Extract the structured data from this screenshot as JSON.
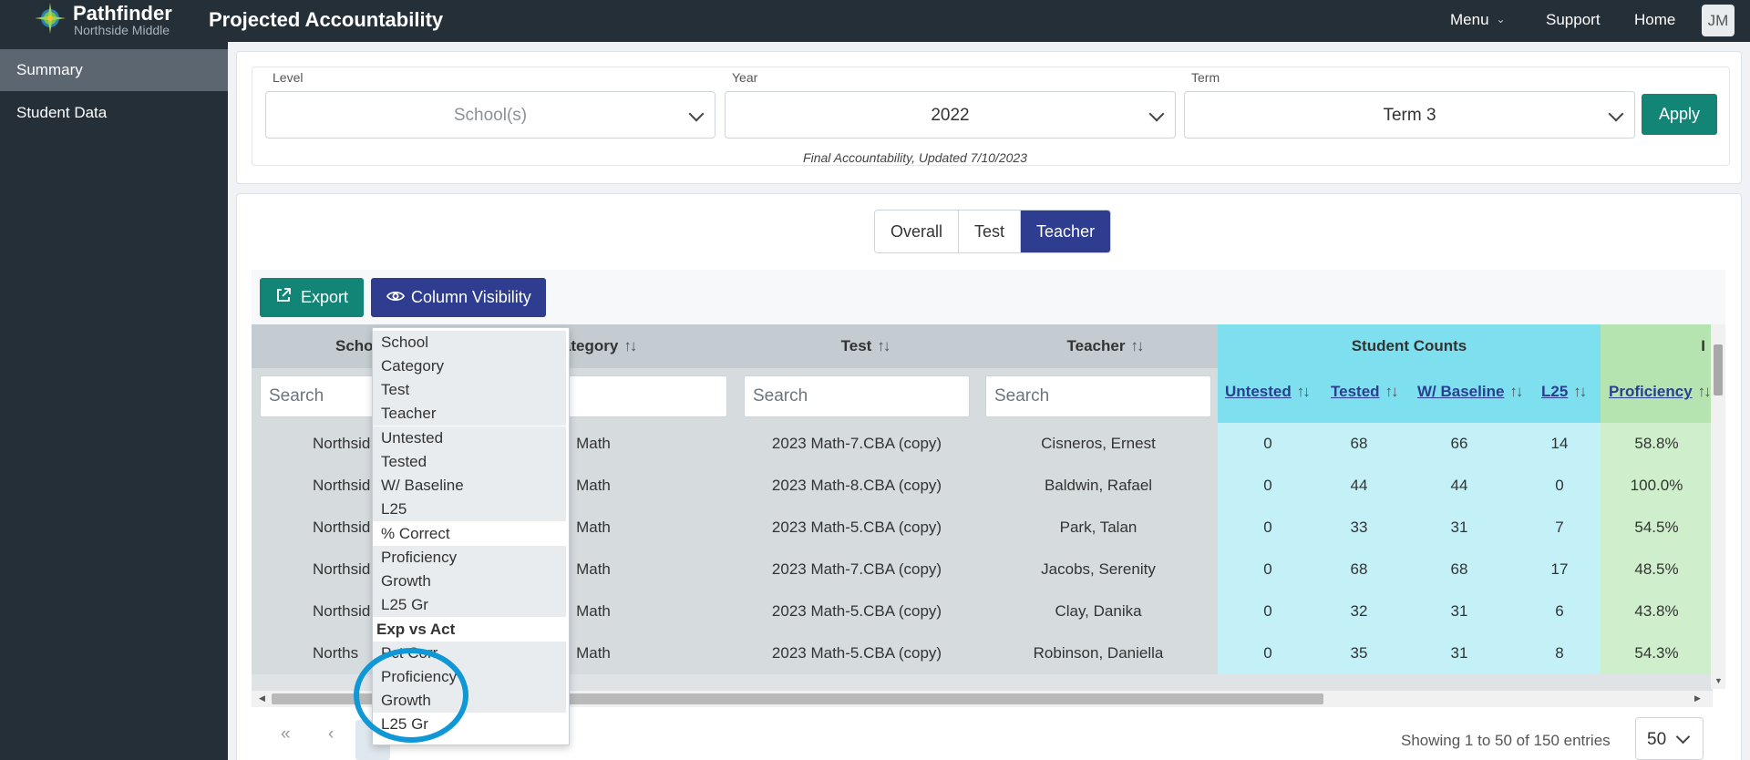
{
  "header": {
    "brand_name": "Pathfinder",
    "brand_sub": "Northside Middle",
    "app_title": "Projected Accountability",
    "nav": {
      "menu": "Menu",
      "support": "Support",
      "home": "Home"
    },
    "avatar_initials": "JM"
  },
  "sidebar": {
    "items": [
      {
        "label": "Summary",
        "active": true
      },
      {
        "label": "Student Data",
        "active": false
      }
    ]
  },
  "filters": {
    "level": {
      "label": "Level",
      "value": "School(s)"
    },
    "year": {
      "label": "Year",
      "value": "2022"
    },
    "term": {
      "label": "Term",
      "value": "Term 3"
    },
    "apply_label": "Apply",
    "note": "Final Accountability, Updated 7/10/2023"
  },
  "view_toggle": {
    "options": [
      "Overall",
      "Test",
      "Teacher"
    ],
    "selected": "Teacher"
  },
  "toolbar": {
    "export_label": "Export",
    "column_visibility_label": "Column Visibility"
  },
  "table": {
    "headers": {
      "school": "Scho",
      "category": "Category",
      "test": "Test",
      "teacher": "Teacher",
      "student_counts": "Student Counts",
      "next_group": "I",
      "sort_icon": "↑↓",
      "sub": {
        "untested": "Untested",
        "tested": "Tested",
        "w_baseline": "W/ Baseline",
        "l25": "L25",
        "proficiency": "Proficiency"
      }
    },
    "search_placeholder": "Search",
    "rows": [
      {
        "school": "Northsid",
        "category": "Math",
        "test": "2023 Math-7.CBA (copy)",
        "teacher": "Cisneros, Ernest",
        "untested": "0",
        "tested": "68",
        "w_baseline": "66",
        "l25": "14",
        "proficiency": "58.8%"
      },
      {
        "school": "Northsid",
        "category": "Math",
        "test": "2023 Math-8.CBA (copy)",
        "teacher": "Baldwin, Rafael",
        "untested": "0",
        "tested": "44",
        "w_baseline": "44",
        "l25": "0",
        "proficiency": "100.0%"
      },
      {
        "school": "Northsid",
        "category": "Math",
        "test": "2023 Math-5.CBA (copy)",
        "teacher": "Park, Talan",
        "untested": "0",
        "tested": "33",
        "w_baseline": "31",
        "l25": "7",
        "proficiency": "54.5%"
      },
      {
        "school": "Northsid",
        "category": "Math",
        "test": "2023 Math-7.CBA (copy)",
        "teacher": "Jacobs, Serenity",
        "untested": "0",
        "tested": "68",
        "w_baseline": "68",
        "l25": "17",
        "proficiency": "48.5%"
      },
      {
        "school": "Northsid",
        "category": "Math",
        "test": "2023 Math-5.CBA (copy)",
        "teacher": "Clay, Danika",
        "untested": "0",
        "tested": "32",
        "w_baseline": "31",
        "l25": "6",
        "proficiency": "43.8%"
      },
      {
        "school": "Norths",
        "category": "Math",
        "test": "2023 Math-5.CBA (copy)",
        "teacher": "Robinson, Daniella",
        "untested": "0",
        "tested": "35",
        "w_baseline": "31",
        "l25": "8",
        "proficiency": "54.3%"
      }
    ]
  },
  "column_visibility_menu": {
    "items": [
      {
        "label": "School",
        "visible": true
      },
      {
        "label": "Category",
        "visible": true
      },
      {
        "label": "Test",
        "visible": true
      },
      {
        "label": "Teacher",
        "visible": true
      },
      {
        "label": "Untested",
        "visible": true
      },
      {
        "label": "Tested",
        "visible": true
      },
      {
        "label": "W/ Baseline",
        "visible": true
      },
      {
        "label": "L25",
        "visible": true
      },
      {
        "label": "% Correct",
        "visible": false
      },
      {
        "label": "Proficiency",
        "visible": true
      },
      {
        "label": "Growth",
        "visible": true
      },
      {
        "label": "L25 Gr",
        "visible": true
      },
      {
        "label": "Exp vs Act",
        "group": true
      },
      {
        "label": "Pct Corr",
        "visible": true
      },
      {
        "label": "Proficiency",
        "visible": true
      },
      {
        "label": "Growth",
        "visible": true
      },
      {
        "label": "L25 Gr",
        "visible": true
      }
    ]
  },
  "pagination": {
    "first": "«",
    "prev": "‹",
    "showing": "Showing 1 to 50 of 150 entries",
    "page_size": "50"
  },
  "colors": {
    "topbar": "#242f38",
    "accent_teal": "#138577",
    "accent_indigo": "#2e3d8f",
    "student_counts_header": "#7ee0ef",
    "proficiency_header": "#b6e4b0",
    "annotation_circle": "#1097d6"
  }
}
